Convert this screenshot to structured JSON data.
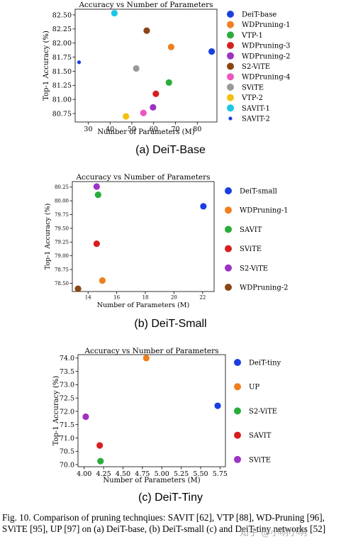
{
  "charts": [
    {
      "id": "a",
      "chart_data": {
        "type": "scatter",
        "title": "Accuracy vs Number of Parameters",
        "xlabel": "Number of Parameters (M)",
        "ylabel": "Top-1 Accuracy (%)",
        "xlim": [
          24,
          89
        ],
        "ylim": [
          80.6,
          82.6
        ],
        "xticks": [
          "30",
          "40",
          "50",
          "60",
          "70",
          "80"
        ],
        "xtick_values": [
          30,
          40,
          50,
          60,
          70,
          80
        ],
        "yticks": [
          "80.75",
          "81.00",
          "81.25",
          "81.50",
          "81.75",
          "82.00",
          "82.25",
          "82.50"
        ],
        "ytick_values": [
          80.75,
          81.0,
          81.25,
          81.5,
          81.75,
          82.0,
          82.25,
          82.5
        ],
        "grid": false,
        "legend_position": "right",
        "series": [
          {
            "name": "DeiT-base",
            "color": "#1a3fe0",
            "size": "large",
            "x": 86.6,
            "y": 81.85
          },
          {
            "name": "WDPruning-1",
            "color": "#f07f1e",
            "size": "large",
            "x": 68.0,
            "y": 81.93
          },
          {
            "name": "VTP-1",
            "color": "#2aad3a",
            "size": "large",
            "x": 67.0,
            "y": 81.3
          },
          {
            "name": "WDPruning-3",
            "color": "#d62020",
            "size": "large",
            "x": 61.0,
            "y": 81.1
          },
          {
            "name": "WDPruning-2",
            "color": "#9d32c4",
            "size": "large",
            "x": 59.7,
            "y": 80.86
          },
          {
            "name": "S2-ViTE",
            "color": "#8b4513",
            "size": "large",
            "x": 56.8,
            "y": 82.22
          },
          {
            "name": "WDPruning-4",
            "color": "#ee55bf",
            "size": "large",
            "x": 55.3,
            "y": 80.76
          },
          {
            "name": "SViTE",
            "color": "#9a9a9a",
            "size": "large",
            "x": 52.0,
            "y": 81.55
          },
          {
            "name": "VTP-2",
            "color": "#f2c010",
            "size": "large",
            "x": 47.3,
            "y": 80.7
          },
          {
            "name": "SAVIT-1",
            "color": "#1cc6e8",
            "size": "large",
            "x": 42.0,
            "y": 82.53
          },
          {
            "name": "SAVIT-2",
            "color": "#1a3fe0",
            "size": "small",
            "x": 25.8,
            "y": 81.66
          }
        ]
      },
      "sub_label": "(a) DeiT-Base"
    },
    {
      "id": "b",
      "chart_data": {
        "type": "scatter",
        "title": "Accuracy vs Number of Parameters",
        "xlabel": "Number of Parameters (M)",
        "ylabel": "Top-1 Accuracy (%)",
        "xlim": [
          12.9,
          22.8
        ],
        "ylim": [
          78.35,
          80.35
        ],
        "xticks": [
          "14",
          "16",
          "18",
          "20",
          "22"
        ],
        "xtick_values": [
          14,
          16,
          18,
          20,
          22
        ],
        "yticks": [
          "78.50",
          "78.75",
          "79.00",
          "79.25",
          "79.50",
          "79.75",
          "80.00",
          "80.25"
        ],
        "ytick_values": [
          78.5,
          78.75,
          79.0,
          79.25,
          79.5,
          79.75,
          80.0,
          80.25
        ],
        "grid": false,
        "legend_position": "right",
        "series": [
          {
            "name": "DeiT-small",
            "color": "#1a3fe0",
            "size": "large",
            "x": 22.05,
            "y": 79.9
          },
          {
            "name": "WDPruning-1",
            "color": "#f07f1e",
            "size": "large",
            "x": 15.0,
            "y": 78.55
          },
          {
            "name": "SAVIT",
            "color": "#2aad3a",
            "size": "large",
            "x": 14.7,
            "y": 80.11
          },
          {
            "name": "SViTE",
            "color": "#d62020",
            "size": "large",
            "x": 14.6,
            "y": 79.22
          },
          {
            "name": "S2-ViTE",
            "color": "#9d32c4",
            "size": "large",
            "x": 14.6,
            "y": 80.26
          },
          {
            "name": "WDPruning-2",
            "color": "#8b4513",
            "size": "large",
            "x": 13.3,
            "y": 78.4
          }
        ]
      },
      "sub_label": "(b) DeiT-Small"
    },
    {
      "id": "c",
      "chart_data": {
        "type": "scatter",
        "title": "Accuracy vs Number of Parameters",
        "xlabel": "Number of Parameters (M)",
        "ylabel": "Top-1 Accuracy (%)",
        "xlim": [
          3.92,
          5.82
        ],
        "ylim": [
          69.92,
          74.13
        ],
        "xticks": [
          "4.00",
          "4.25",
          "4.50",
          "4.75",
          "5.00",
          "5.25",
          "5.50",
          "5.75"
        ],
        "xtick_values": [
          4.0,
          4.25,
          4.5,
          4.75,
          5.0,
          5.25,
          5.5,
          5.75
        ],
        "yticks": [
          "70.0",
          "70.5",
          "71.0",
          "71.5",
          "72.0",
          "72.5",
          "73.0",
          "73.5",
          "74.0"
        ],
        "ytick_values": [
          70.0,
          70.5,
          71.0,
          71.5,
          72.0,
          72.5,
          73.0,
          73.5,
          74.0
        ],
        "grid": false,
        "legend_position": "right",
        "series": [
          {
            "name": "DeiT-tiny",
            "color": "#1a3fe0",
            "size": "large",
            "x": 5.72,
            "y": 72.21
          },
          {
            "name": "UP",
            "color": "#f07f1e",
            "size": "large",
            "x": 4.8,
            "y": 74.0
          },
          {
            "name": "S2-ViTE",
            "color": "#2aad3a",
            "size": "large",
            "x": 4.21,
            "y": 70.13
          },
          {
            "name": "SAVIT",
            "color": "#d62020",
            "size": "large",
            "x": 4.2,
            "y": 70.72
          },
          {
            "name": "SViTE",
            "color": "#9d32c4",
            "size": "large",
            "x": 4.02,
            "y": 71.8
          }
        ]
      },
      "sub_label": "(c) DeiT-Tiny"
    }
  ],
  "caption": "Fig. 10.  Comparison of pruning technqiues: SAVIT [62], VTP [88], WD-Pruning [96], SViTE [95], UP [97] on (a) DeiT-base, (b) DeiT-small (c) and DeiT-tiny networks [52]",
  "watermark": "知乎 @小明小明"
}
